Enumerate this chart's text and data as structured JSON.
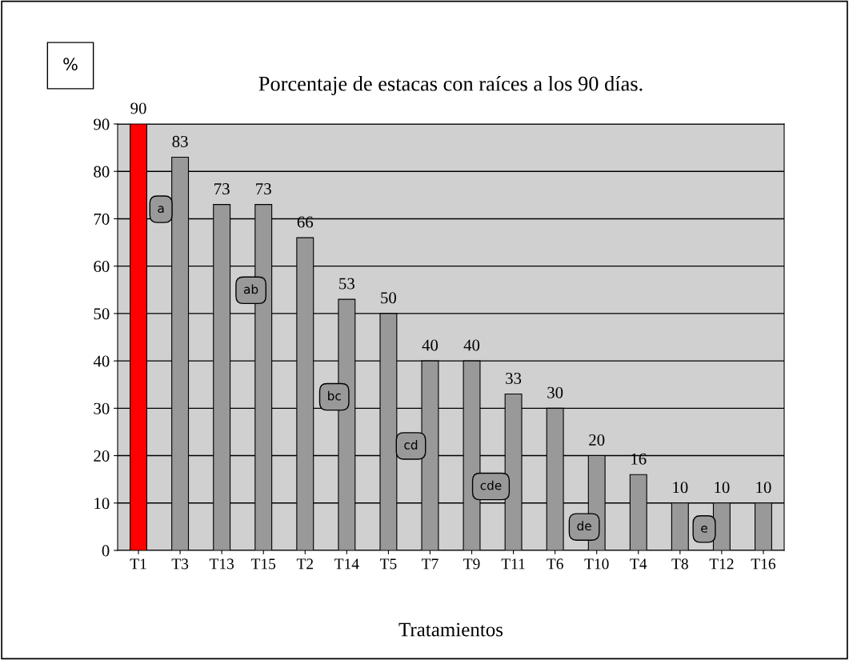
{
  "chart_data": {
    "type": "bar",
    "title": "Porcentaje de estacas con raíces a los 90 días.",
    "xlabel": "Tratamientos",
    "ylabel": "%",
    "categories": [
      "T1",
      "T3",
      "T13",
      "T15",
      "T2",
      "T14",
      "T5",
      "T7",
      "T9",
      "T11",
      "T6",
      "T10",
      "T4",
      "T8",
      "T12",
      "T16"
    ],
    "values": [
      90,
      83,
      73,
      73,
      66,
      53,
      50,
      40,
      40,
      33,
      30,
      20,
      16,
      10,
      10,
      10
    ],
    "colors": [
      "#ff0000",
      "#999999",
      "#999999",
      "#999999",
      "#999999",
      "#999999",
      "#999999",
      "#999999",
      "#999999",
      "#999999",
      "#999999",
      "#999999",
      "#999999",
      "#999999",
      "#999999",
      "#999999"
    ],
    "ylim": [
      0,
      90
    ],
    "yticks": [
      0,
      10,
      20,
      30,
      40,
      50,
      60,
      70,
      80,
      90
    ],
    "grid": "y",
    "data_labels": true,
    "annotations": [
      "a",
      "ab",
      "bc",
      "cd",
      "cde",
      "de",
      "e"
    ]
  }
}
